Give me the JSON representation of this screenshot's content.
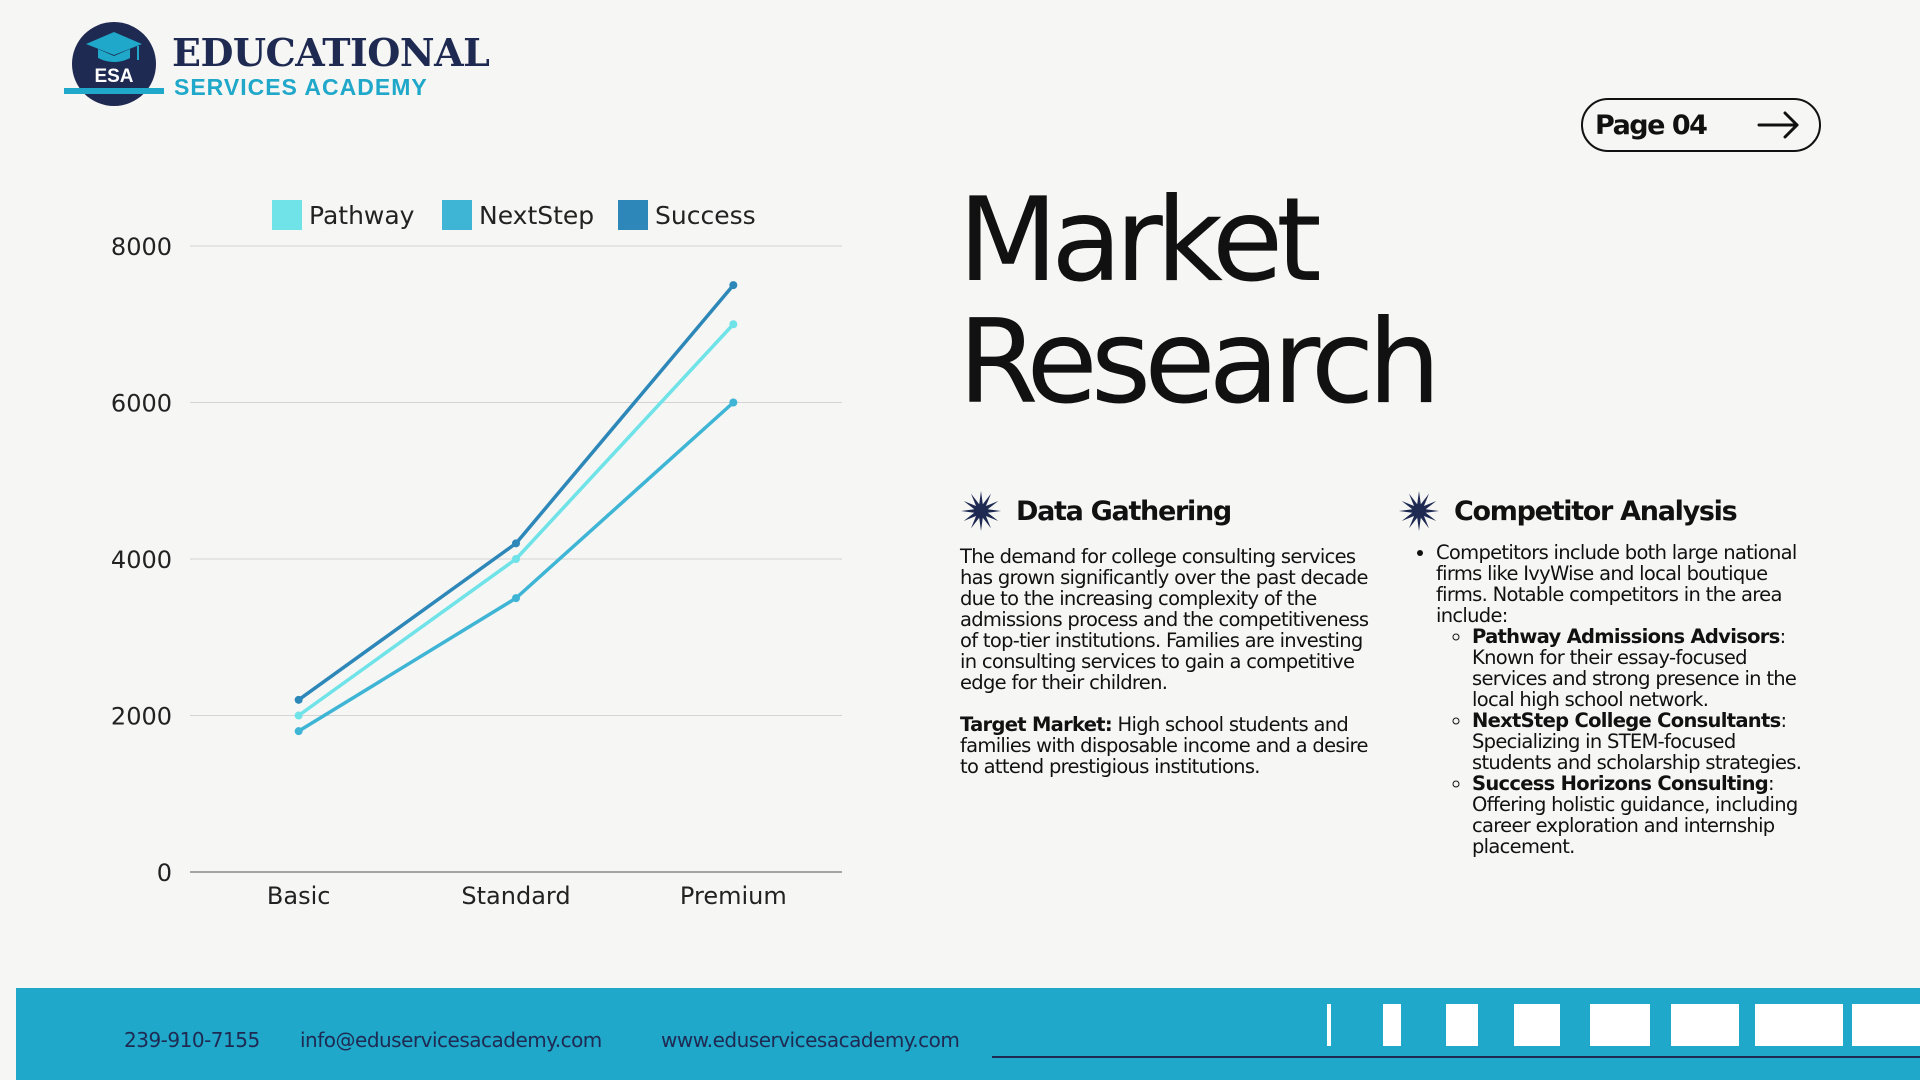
{
  "brand": {
    "title": "EDUCATIONAL",
    "subtitle": "SERVICES ACADEMY",
    "badge": "ESA",
    "colors": {
      "navy": "#1f2a52",
      "cyan": "#1fa8c9"
    }
  },
  "page": {
    "label": "Page 04",
    "icon": "arrow-right-icon"
  },
  "title": {
    "line1": "Market",
    "line2": "Research"
  },
  "data_gathering": {
    "icon": "starburst-icon",
    "heading": "Data Gathering",
    "paragraph": "The demand for college consulting services has grown significantly over the past decade due to the increasing complexity of the admissions process and the competitiveness of top-tier institutions. Families are investing in consulting services to gain a competitive edge for their children.",
    "target_label": "Target Market:",
    "target_text": " High school students and families with disposable income and a desire to attend prestigious institutions."
  },
  "competitor_analysis": {
    "icon": "starburst-icon",
    "heading": "Competitor Analysis",
    "intro": "Competitors include both large national firms like IvyWise and local boutique firms. Notable competitors in the area include:",
    "items": [
      {
        "name": "Pathway Admissions Advisors",
        "desc": ": Known for their essay-focused services and strong presence in the local high school network."
      },
      {
        "name": "NextStep College Consultants",
        "desc": ": Specializing in STEM-focused students and scholarship strategies."
      },
      {
        "name": "Success Horizons Consulting",
        "desc": ": Offering holistic guidance, including career exploration and internship placement."
      }
    ]
  },
  "footer": {
    "phone": "239-910-7155",
    "email": "info@eduservicesacademy.com",
    "website": "www.eduservicesacademy.com"
  },
  "chart_data": {
    "type": "line",
    "categories": [
      "Basic",
      "Standard",
      "Premium"
    ],
    "series": [
      {
        "name": "Pathway",
        "values": [
          2000,
          4000,
          7000
        ],
        "color": "#6fe3e8"
      },
      {
        "name": "NextStep",
        "values": [
          1800,
          3500,
          6000
        ],
        "color": "#3fb5d6"
      },
      {
        "name": "Success",
        "values": [
          2200,
          4200,
          7500
        ],
        "color": "#2d87b8"
      }
    ],
    "yticks": [
      "0",
      "2000",
      "4000",
      "6000",
      "8000"
    ],
    "ylim": [
      0,
      8000
    ],
    "grid": true,
    "legend": "top"
  }
}
